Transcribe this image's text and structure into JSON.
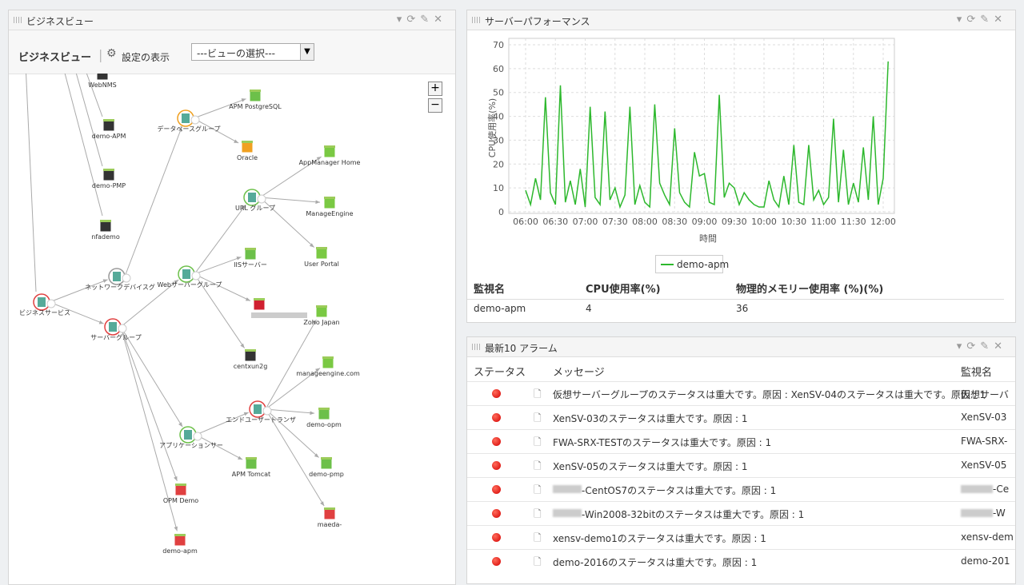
{
  "business_view": {
    "panel_title": "ビジネスビュー",
    "toolbar_title": "ビジネスビュー",
    "settings": "設定の表示",
    "view_select": "---ビューの選択---",
    "zoom_in": "+",
    "zoom_out": "−",
    "nodes": [
      "WebNMS",
      "demo-APM",
      "demo-PMP",
      "nfademo",
      "ビジネスサービス",
      "ネットワークデバイスグ",
      "サーバーグループ",
      "データベースグループ",
      "APM PostgreSQL",
      "Oracle",
      "URL グループ",
      "AppManager Home",
      "ManageEngine",
      "User Portal",
      "Webサーバーグループ",
      "IISサーバー",
      null,
      "Zoho Japan",
      "centxun2g",
      "manageengine.com",
      "エンドユーザートランザ",
      "demo-opm",
      "アプリケーションサー",
      "APM Tomcat",
      "demo-pmp",
      "OPM Demo",
      "maeda-",
      "demo-apm"
    ]
  },
  "performance": {
    "panel_title": "サーバーパフォーマンス",
    "chart": {
      "type": "line",
      "y_label": "CPU使用率(%)",
      "x_label": "時間",
      "x": [
        "06:00",
        "06:05",
        "06:10",
        "06:15",
        "06:20",
        "06:25",
        "06:30",
        "06:35",
        "06:40",
        "06:45",
        "06:50",
        "06:55",
        "07:00",
        "07:05",
        "07:10",
        "07:15",
        "07:20",
        "07:25",
        "07:30",
        "07:35",
        "07:40",
        "07:45",
        "07:50",
        "07:55",
        "08:00",
        "08:05",
        "08:10",
        "08:15",
        "08:20",
        "08:25",
        "08:30",
        "08:35",
        "08:40",
        "08:45",
        "08:50",
        "08:55",
        "09:00",
        "09:05",
        "09:10",
        "09:15",
        "09:20",
        "09:25",
        "09:30",
        "09:35",
        "09:40",
        "09:45",
        "09:50",
        "09:55",
        "10:00",
        "10:05",
        "10:10",
        "10:15",
        "10:20",
        "10:25",
        "10:30",
        "10:35",
        "10:40",
        "10:45",
        "10:50",
        "10:55",
        "11:00",
        "11:05",
        "11:10",
        "11:15",
        "11:20",
        "11:25",
        "11:30",
        "11:35",
        "11:40",
        "11:45",
        "11:50",
        "11:55",
        "12:00",
        "12:05"
      ],
      "xticks": [
        "06:00",
        "06:30",
        "07:00",
        "07:30",
        "08:00",
        "08:30",
        "09:00",
        "09:30",
        "10:00",
        "10:30",
        "11:00",
        "11:30",
        "12:00"
      ],
      "ylim": [
        0,
        70
      ],
      "yticks": [
        0,
        10,
        20,
        30,
        40,
        50,
        60,
        70
      ],
      "grid": true,
      "series": [
        {
          "name": "demo-apm",
          "color": "#2db82d",
          "values": [
            9,
            3,
            14,
            5,
            48,
            8,
            3,
            53,
            4,
            13,
            3,
            18,
            2,
            44,
            6,
            3,
            42,
            5,
            10,
            2,
            7,
            44,
            3,
            11,
            4,
            2,
            45,
            12,
            7,
            3,
            35,
            8,
            4,
            2,
            25,
            15,
            16,
            4,
            3,
            49,
            6,
            12,
            10,
            3,
            8,
            5,
            3,
            2,
            2,
            13,
            5,
            2,
            15,
            3,
            28,
            4,
            3,
            28,
            5,
            9,
            3,
            6,
            39,
            4,
            26,
            3,
            12,
            4,
            27,
            5,
            40,
            3,
            14,
            63
          ]
        }
      ]
    },
    "table": {
      "columns": [
        "監視名",
        "CPU使用率(%)",
        "物理的メモリー使用率 (%)(%)"
      ],
      "rows": [
        [
          "demo-apm",
          4,
          36
        ]
      ]
    }
  },
  "alarms": {
    "panel_title": "最新10 アラーム",
    "columns": [
      "ステータス",
      "メッセージ",
      "監視名"
    ],
    "rows": [
      [
        "仮想サーバーグループのステータスは重大です。原因 : XenSV-04のステータスは重大です。原因 : 1",
        "仮想サーバ"
      ],
      [
        "XenSV-03のステータスは重大です。原因 : 1",
        "XenSV-03"
      ],
      [
        "FWA-SRX-TESTのステータスは重大です。原因 : 1",
        "FWA-SRX-"
      ],
      [
        "XenSV-05のステータスは重大です。原因 : 1",
        "XenSV-05"
      ],
      [
        "-CentOS7のステータスは重大です。原因 : 1",
        "-Ce"
      ],
      [
        "-Win2008-32bitのステータスは重大です。原因 : 1",
        "-W"
      ],
      [
        "xensv-demo1のステータスは重大です。原因 : 1",
        "xensv-dem"
      ],
      [
        "demo-2016のステータスは重大です。原因 : 1",
        "demo-201"
      ]
    ]
  }
}
